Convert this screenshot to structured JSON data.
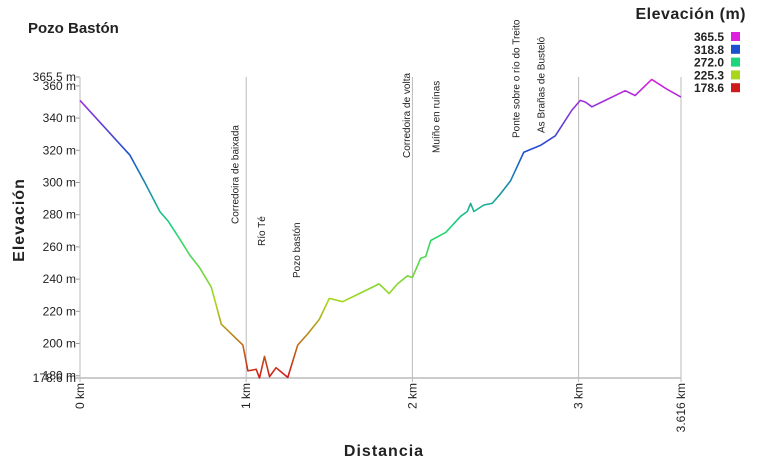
{
  "chart_data": {
    "type": "line",
    "title": "Pozo Bastón",
    "x_label": "Distancia",
    "y_label": "Elevación",
    "legend_title": "Elevación (m)",
    "color_scale": [
      {
        "value": 365.5,
        "color": "#e020e0"
      },
      {
        "value": 318.8,
        "color": "#1a4fd0"
      },
      {
        "value": 272,
        "label": "272.0",
        "color": "#1bd67a"
      },
      {
        "value": 225.3,
        "color": "#a8d61a"
      },
      {
        "value": 178.6,
        "color": "#d01a1a"
      }
    ],
    "x": [
      0,
      0.3,
      0.39,
      0.48,
      0.53,
      0.6,
      0.66,
      0.72,
      0.79,
      0.85,
      0.98,
      1.01,
      1.06,
      1.08,
      1.11,
      1.14,
      1.18,
      1.25,
      1.31,
      1.37,
      1.44,
      1.5,
      1.58,
      1.68,
      1.8,
      1.86,
      1.91,
      1.97,
      2.0,
      2.05,
      2.08,
      2.11,
      2.2,
      2.29,
      2.33,
      2.35,
      2.37,
      2.43,
      2.48,
      2.53,
      2.59,
      2.67,
      2.77,
      2.86,
      2.96,
      3.01,
      3.04,
      3.08,
      3.16,
      3.28,
      3.34,
      3.44,
      3.53,
      3.616
    ],
    "values": [
      351,
      317,
      300,
      282,
      276,
      265,
      255,
      247,
      235,
      212,
      199,
      183,
      184,
      178.6,
      192,
      179.5,
      185,
      179,
      199,
      206,
      215,
      228,
      226,
      231,
      237,
      231,
      237,
      242,
      241,
      253,
      254,
      264,
      269,
      279,
      282,
      287,
      282,
      286,
      287,
      293,
      301,
      318.8,
      323,
      329,
      345,
      351,
      350,
      347,
      351,
      357,
      354,
      364,
      358,
      353
    ],
    "xlim": [
      0,
      3.616
    ],
    "xticks": [
      {
        "value": 0,
        "label": "0 km"
      },
      {
        "value": 1,
        "label": "1 km"
      },
      {
        "value": 2,
        "label": "2 km"
      },
      {
        "value": 3,
        "label": "3 km"
      },
      {
        "value": 3.616,
        "label": "3.616 km"
      }
    ],
    "ylim": [
      178.6,
      365.5
    ],
    "yticks": [
      {
        "value": 178.6,
        "label": "178.6 m"
      },
      {
        "value": 180,
        "label": "180 m"
      },
      {
        "value": 200,
        "label": "200 m"
      },
      {
        "value": 220,
        "label": "220 m"
      },
      {
        "value": 240,
        "label": "240 m"
      },
      {
        "value": 260,
        "label": "260 m"
      },
      {
        "value": 280,
        "label": "280 m"
      },
      {
        "value": 300,
        "label": "300 m"
      },
      {
        "value": 320,
        "label": "320 m"
      },
      {
        "value": 340,
        "label": "340 m"
      },
      {
        "value": 360,
        "label": "360 m"
      },
      {
        "value": 365.5,
        "label": "365.5 m"
      }
    ],
    "annotations": [
      {
        "text": "Corredoira de baixada",
        "x": 0.93
      },
      {
        "text": "Río Té",
        "x": 1.09
      },
      {
        "text": "Pozo bastón",
        "x": 1.3
      },
      {
        "text": "Corredoira de volta",
        "x": 1.96
      },
      {
        "text": "Muíño en ruínas",
        "x": 2.14
      },
      {
        "text": "Ponte sobre o río do Treito",
        "x": 2.62
      },
      {
        "text": "As Brañas de Busteló",
        "x": 2.77
      }
    ]
  }
}
